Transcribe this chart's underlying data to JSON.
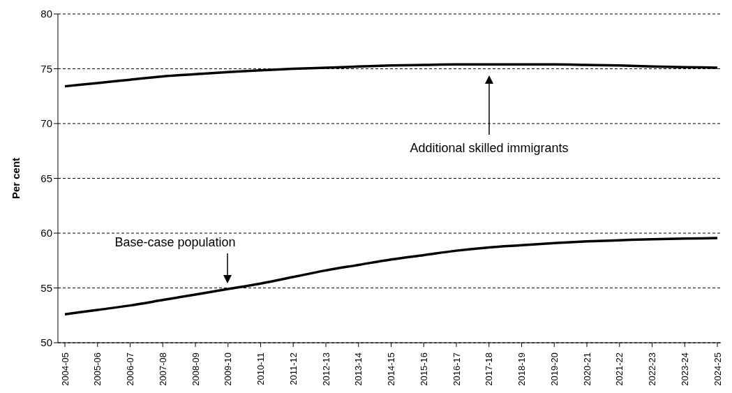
{
  "chart_data": {
    "type": "line",
    "ylabel": "Per cent",
    "categories": [
      "2004-05",
      "2005-06",
      "2006-07",
      "2007-08",
      "2008-09",
      "2009-10",
      "2010-11",
      "2011-12",
      "2012-13",
      "2013-14",
      "2014-15",
      "2015-16",
      "2016-17",
      "2017-18",
      "2018-19",
      "2019-20",
      "2020-21",
      "2021-22",
      "2022-23",
      "2023-24",
      "2024-25"
    ],
    "series": [
      {
        "color": "#000000",
        "values": [
          73.4,
          73.7,
          74.0,
          74.3,
          74.5,
          74.7,
          74.85,
          75.0,
          75.1,
          75.2,
          75.3,
          75.35,
          75.4,
          75.4,
          75.4,
          75.4,
          75.35,
          75.3,
          75.2,
          75.15,
          75.1
        ]
      },
      {
        "color": "#000000",
        "values": [
          52.6,
          53.0,
          53.4,
          53.9,
          54.4,
          54.9,
          55.4,
          56.0,
          56.6,
          57.1,
          57.6,
          58.0,
          58.4,
          58.7,
          58.9,
          59.1,
          59.25,
          59.35,
          59.45,
          59.5,
          59.55
        ]
      }
    ],
    "annotations": [
      "Additional skilled immigrants",
      "Base-case population"
    ],
    "ylim": [
      50,
      80
    ],
    "yticks": [
      50,
      55,
      60,
      65,
      70,
      75,
      80
    ],
    "grid": "y",
    "marker": "none",
    "line_style": "solid"
  }
}
